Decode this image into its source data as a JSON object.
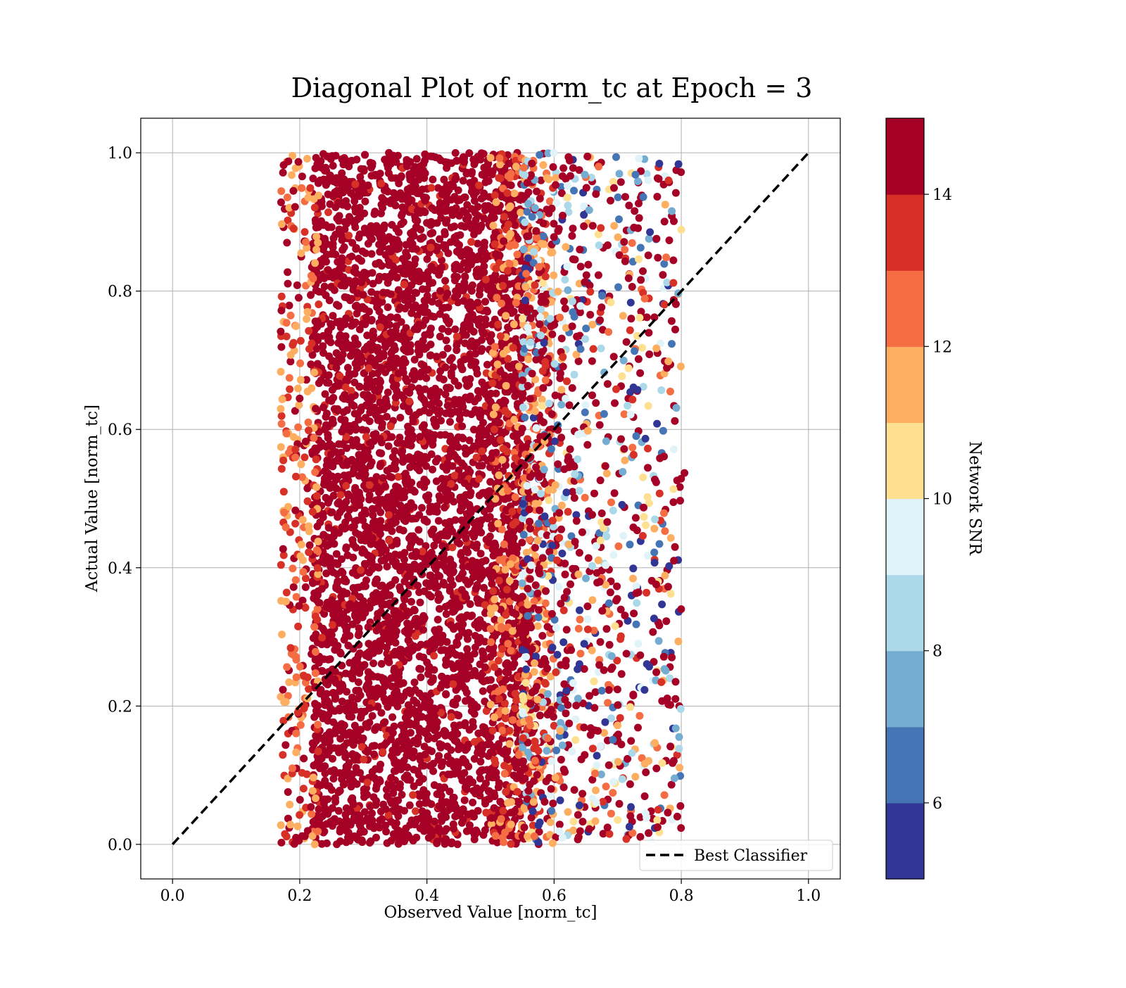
{
  "chart_data": {
    "type": "scatter",
    "title": "Diagonal Plot of norm_tc at Epoch = 3",
    "xlabel": "Observed Value [norm_tc]",
    "ylabel": "Actual Value [norm_tc]",
    "xlim": [
      -0.05,
      1.05
    ],
    "ylim": [
      -0.05,
      1.05
    ],
    "xticks": [
      0.0,
      0.2,
      0.4,
      0.6,
      0.8,
      1.0
    ],
    "yticks": [
      0.0,
      0.2,
      0.4,
      0.6,
      0.8,
      1.0
    ],
    "xtick_labels": [
      "0.0",
      "0.2",
      "0.4",
      "0.6",
      "0.8",
      "1.0"
    ],
    "ytick_labels": [
      "0.0",
      "0.2",
      "0.4",
      "0.6",
      "0.8",
      "1.0"
    ],
    "grid": true,
    "reference_line": {
      "name": "Best Classifier",
      "x": [
        0.0,
        1.0
      ],
      "y": [
        0.0,
        1.0
      ],
      "style": "dashed",
      "color": "#000000"
    },
    "legend": {
      "position": "lower-right",
      "entries": [
        "Best Classifier"
      ]
    },
    "colorbar": {
      "label": "Network SNR",
      "range": [
        5,
        15
      ],
      "ticks": [
        6,
        8,
        10,
        12,
        14
      ],
      "tick_labels": [
        "6",
        "8",
        "10",
        "12",
        "14"
      ],
      "colors": [
        "#313695",
        "#4575b4",
        "#74add1",
        "#abd9e9",
        "#e0f3f8",
        "#fee090",
        "#fdae61",
        "#f46d43",
        "#d73027",
        "#a50026"
      ]
    },
    "distribution": {
      "dense_region": {
        "x_range": [
          0.22,
          0.55
        ],
        "y_range": [
          0.0,
          1.0
        ],
        "snr": 15
      },
      "edge_region": {
        "x_range": [
          0.17,
          0.6
        ],
        "y_range": [
          0.0,
          1.0
        ],
        "snr_range": [
          11,
          15
        ]
      },
      "sparse_region": {
        "x_range": [
          0.55,
          0.8
        ],
        "y_range": [
          0.0,
          1.0
        ],
        "snr_range": [
          5,
          15
        ]
      },
      "outliers": [
        {
          "x": 0.18,
          "y": 0.87,
          "snr": 15
        },
        {
          "x": 0.19,
          "y": 0.945,
          "snr": 15
        },
        {
          "x": 0.175,
          "y": 0.51,
          "snr": 13
        },
        {
          "x": 0.78,
          "y": 0.96,
          "snr": 13
        },
        {
          "x": 0.805,
          "y": 0.537,
          "snr": 14
        },
        {
          "x": 0.79,
          "y": 0.43,
          "snr": 15
        }
      ]
    }
  }
}
